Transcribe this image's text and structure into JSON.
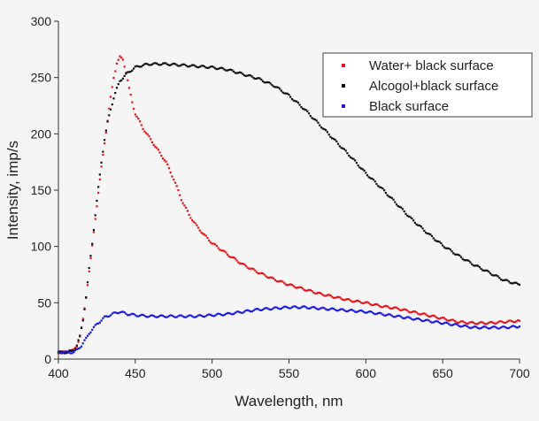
{
  "chart_data": {
    "type": "scatter",
    "title": "",
    "xlabel": "Wavelength, nm",
    "ylabel": "Intensity, imp/s",
    "xlim": [
      400,
      700
    ],
    "ylim": [
      0,
      300
    ],
    "x_ticks": [
      "400",
      "450",
      "500",
      "550",
      "600",
      "650",
      "700"
    ],
    "y_ticks": [
      "0",
      "50",
      "100",
      "150",
      "200",
      "250",
      "300"
    ],
    "grid": false,
    "legend_position": "top-right",
    "series": [
      {
        "name": "Water+ black surface",
        "color": "#e8141a",
        "points": [
          [
            400,
            6
          ],
          [
            405,
            6
          ],
          [
            408,
            7
          ],
          [
            410,
            8
          ],
          [
            412,
            12
          ],
          [
            414,
            20
          ],
          [
            416,
            35
          ],
          [
            418,
            55
          ],
          [
            420,
            78
          ],
          [
            422,
            100
          ],
          [
            424,
            125
          ],
          [
            426,
            148
          ],
          [
            428,
            170
          ],
          [
            430,
            192
          ],
          [
            432,
            212
          ],
          [
            434,
            232
          ],
          [
            436,
            250
          ],
          [
            438,
            263
          ],
          [
            440,
            268
          ],
          [
            442,
            266
          ],
          [
            444,
            255
          ],
          [
            446,
            240
          ],
          [
            448,
            228
          ],
          [
            450,
            218
          ],
          [
            455,
            205
          ],
          [
            460,
            195
          ],
          [
            465,
            185
          ],
          [
            470,
            175
          ],
          [
            475,
            160
          ],
          [
            480,
            142
          ],
          [
            485,
            128
          ],
          [
            490,
            118
          ],
          [
            495,
            110
          ],
          [
            500,
            103
          ],
          [
            510,
            93
          ],
          [
            520,
            84
          ],
          [
            530,
            77
          ],
          [
            540,
            71
          ],
          [
            550,
            66
          ],
          [
            560,
            62
          ],
          [
            570,
            58
          ],
          [
            580,
            55
          ],
          [
            590,
            52
          ],
          [
            600,
            50
          ],
          [
            610,
            47
          ],
          [
            620,
            45
          ],
          [
            630,
            42
          ],
          [
            640,
            39
          ],
          [
            650,
            36
          ],
          [
            660,
            33
          ],
          [
            670,
            32
          ],
          [
            680,
            32
          ],
          [
            690,
            33
          ],
          [
            700,
            34
          ]
        ]
      },
      {
        "name": "Alcogol+black surface",
        "color": "#111111",
        "points": [
          [
            400,
            6
          ],
          [
            405,
            6
          ],
          [
            408,
            7
          ],
          [
            410,
            8
          ],
          [
            412,
            12
          ],
          [
            414,
            20
          ],
          [
            416,
            35
          ],
          [
            418,
            55
          ],
          [
            420,
            80
          ],
          [
            422,
            103
          ],
          [
            424,
            128
          ],
          [
            426,
            152
          ],
          [
            428,
            175
          ],
          [
            430,
            195
          ],
          [
            432,
            210
          ],
          [
            434,
            222
          ],
          [
            436,
            232
          ],
          [
            438,
            240
          ],
          [
            440,
            247
          ],
          [
            445,
            254
          ],
          [
            450,
            259
          ],
          [
            455,
            261
          ],
          [
            460,
            262
          ],
          [
            470,
            262
          ],
          [
            480,
            261
          ],
          [
            490,
            260
          ],
          [
            500,
            259
          ],
          [
            510,
            257
          ],
          [
            520,
            253
          ],
          [
            530,
            249
          ],
          [
            540,
            243
          ],
          [
            550,
            234
          ],
          [
            560,
            222
          ],
          [
            570,
            208
          ],
          [
            580,
            194
          ],
          [
            590,
            180
          ],
          [
            600,
            165
          ],
          [
            610,
            152
          ],
          [
            620,
            138
          ],
          [
            630,
            124
          ],
          [
            640,
            112
          ],
          [
            650,
            101
          ],
          [
            660,
            92
          ],
          [
            670,
            84
          ],
          [
            680,
            77
          ],
          [
            690,
            70
          ],
          [
            700,
            66
          ]
        ]
      },
      {
        "name": "Black surface",
        "color": "#1a1ae6",
        "points": [
          [
            400,
            6
          ],
          [
            405,
            6
          ],
          [
            410,
            6
          ],
          [
            412,
            8
          ],
          [
            415,
            12
          ],
          [
            418,
            18
          ],
          [
            420,
            23
          ],
          [
            425,
            31
          ],
          [
            430,
            37
          ],
          [
            435,
            40
          ],
          [
            440,
            42
          ],
          [
            445,
            40
          ],
          [
            450,
            39
          ],
          [
            460,
            38
          ],
          [
            470,
            38
          ],
          [
            480,
            38
          ],
          [
            490,
            38
          ],
          [
            500,
            39
          ],
          [
            510,
            40
          ],
          [
            520,
            42
          ],
          [
            530,
            44
          ],
          [
            540,
            45
          ],
          [
            550,
            46
          ],
          [
            560,
            46
          ],
          [
            570,
            45
          ],
          [
            580,
            44
          ],
          [
            590,
            43
          ],
          [
            600,
            42
          ],
          [
            610,
            40
          ],
          [
            620,
            38
          ],
          [
            630,
            36
          ],
          [
            640,
            34
          ],
          [
            650,
            32
          ],
          [
            660,
            30
          ],
          [
            670,
            28
          ],
          [
            680,
            28
          ],
          [
            690,
            28
          ],
          [
            700,
            29
          ]
        ]
      }
    ]
  }
}
